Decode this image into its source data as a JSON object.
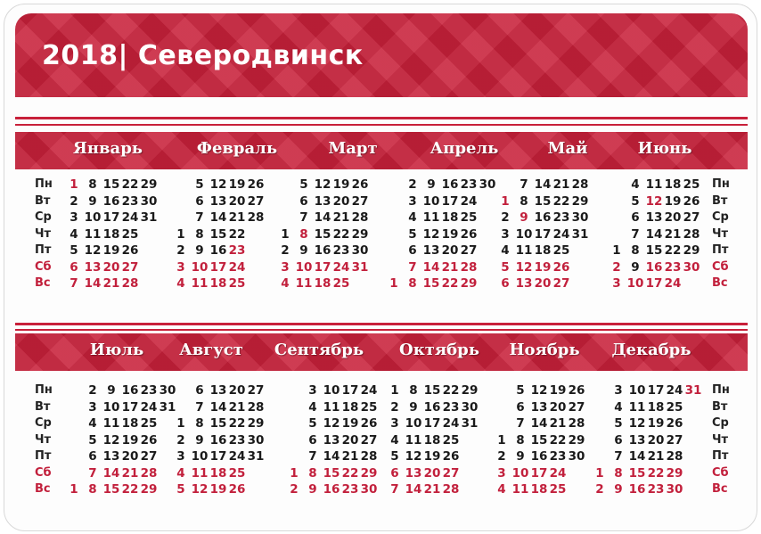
{
  "title": "2018| Северодвинск",
  "colors": {
    "accent": "#c8203a",
    "holiday": "#c2203c"
  },
  "weekdays": [
    "Пн",
    "Вт",
    "Ср",
    "Чт",
    "Пт",
    "Сб",
    "Вс"
  ],
  "months": [
    {
      "name": "Январь",
      "first_weekday": 0,
      "days": 31,
      "red": [
        1,
        6,
        7,
        13,
        14,
        20,
        21,
        27,
        28
      ]
    },
    {
      "name": "Февраль",
      "first_weekday": 3,
      "days": 28,
      "red": [
        3,
        4,
        10,
        11,
        17,
        18,
        23,
        24,
        25
      ]
    },
    {
      "name": "Март",
      "first_weekday": 3,
      "days": 31,
      "red": [
        3,
        4,
        8,
        10,
        11,
        17,
        18,
        24,
        25,
        31
      ]
    },
    {
      "name": "Апрель",
      "first_weekday": 6,
      "days": 30,
      "red": [
        1,
        7,
        8,
        14,
        15,
        21,
        22,
        28,
        29
      ]
    },
    {
      "name": "Май",
      "first_weekday": 1,
      "days": 31,
      "red": [
        1,
        5,
        6,
        9,
        12,
        13,
        19,
        20,
        26,
        27
      ]
    },
    {
      "name": "Июнь",
      "first_weekday": 4,
      "days": 30,
      "red": [
        2,
        3,
        10,
        12,
        16,
        17,
        23,
        24,
        30
      ]
    },
    {
      "name": "Июль",
      "first_weekday": 6,
      "days": 31,
      "red": [
        1,
        7,
        8,
        14,
        15,
        21,
        22,
        28,
        29
      ]
    },
    {
      "name": "Август",
      "first_weekday": 2,
      "days": 31,
      "red": [
        4,
        5,
        11,
        12,
        18,
        19,
        25,
        26
      ]
    },
    {
      "name": "Сентябрь",
      "first_weekday": 5,
      "days": 30,
      "red": [
        1,
        2,
        8,
        9,
        15,
        16,
        22,
        23,
        29,
        30
      ]
    },
    {
      "name": "Октябрь",
      "first_weekday": 0,
      "days": 31,
      "red": [
        6,
        7,
        13,
        14,
        20,
        21,
        27,
        28
      ]
    },
    {
      "name": "Ноябрь",
      "first_weekday": 3,
      "days": 30,
      "red": [
        3,
        4,
        10,
        11,
        17,
        18,
        24,
        25
      ]
    },
    {
      "name": "Декабрь",
      "first_weekday": 5,
      "days": 31,
      "red": [
        1,
        2,
        8,
        9,
        15,
        16,
        22,
        23,
        29,
        30,
        31
      ]
    }
  ]
}
